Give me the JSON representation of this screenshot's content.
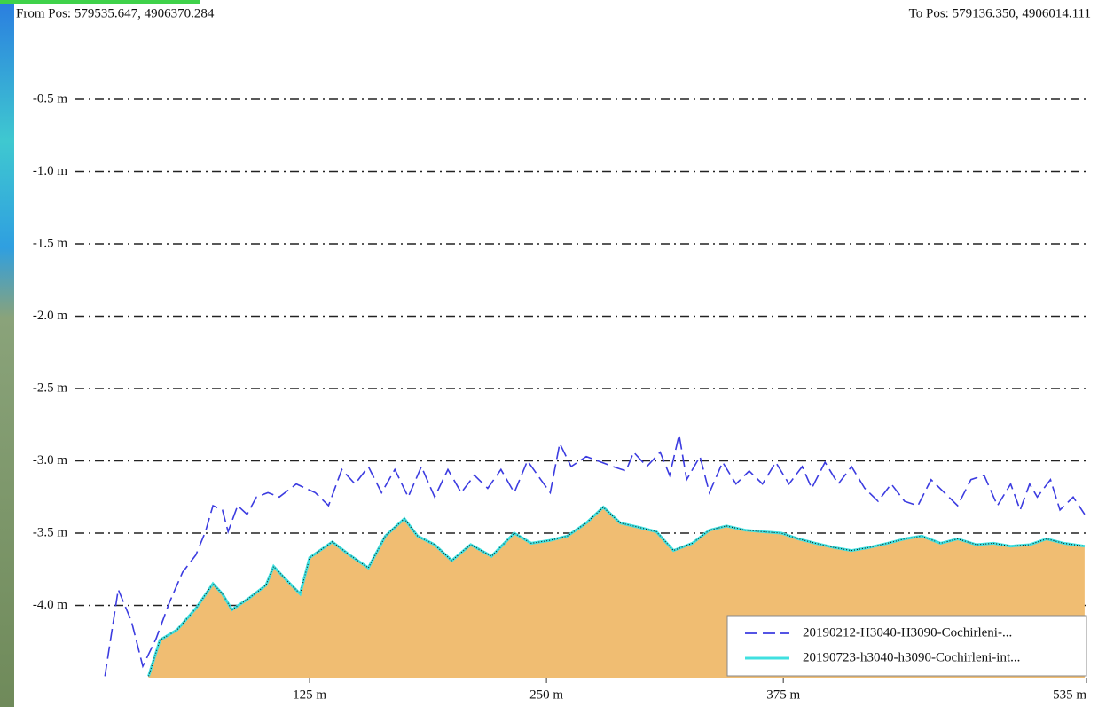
{
  "header": {
    "from": "From Pos: 579535.647, 4906370.284",
    "to": "To Pos: 579136.350, 4906014.111"
  },
  "chart_data": {
    "type": "line",
    "xlim": [
      0,
      535
    ],
    "xticks": [
      {
        "value": 125,
        "label": "125 m"
      },
      {
        "value": 250,
        "label": "250 m"
      },
      {
        "value": 375,
        "label": "375 m"
      },
      {
        "value": 535,
        "label": "535 m"
      }
    ],
    "ylim": [
      -4.5,
      0
    ],
    "yticks": [
      {
        "value": -0.5,
        "label": "-0.5 m"
      },
      {
        "value": -1.0,
        "label": "-1.0 m"
      },
      {
        "value": -1.5,
        "label": "-1.5 m"
      },
      {
        "value": -2.0,
        "label": "-2.0 m"
      },
      {
        "value": -2.5,
        "label": "-2.5 m"
      },
      {
        "value": -3.0,
        "label": "-3.0 m"
      },
      {
        "value": -3.5,
        "label": "-3.5 m"
      },
      {
        "value": -4.0,
        "label": "-4.0 m"
      }
    ],
    "grid": true,
    "legend": "lower right",
    "series": [
      {
        "name": "20190212-H3040-H3090-Cochirleni-...",
        "color": "#3c3ce0",
        "dashed": true,
        "x": [
          17,
          24,
          31,
          37,
          44,
          51,
          58,
          65,
          70,
          74,
          79,
          82,
          87,
          92,
          97,
          103,
          109,
          118,
          128,
          135,
          142,
          149,
          156,
          163,
          170,
          177,
          184,
          191,
          198,
          205,
          212,
          219,
          226,
          233,
          240,
          247,
          252,
          257,
          263,
          271,
          277,
          285,
          292,
          296,
          303,
          310,
          315,
          320,
          324,
          331,
          336,
          343,
          350,
          357,
          364,
          371,
          378,
          385,
          390,
          397,
          404,
          411,
          418,
          425,
          432,
          439,
          446,
          453,
          460,
          467,
          474,
          481,
          488,
          495,
          500,
          505,
          509,
          516,
          521,
          528,
          534
        ],
        "values": [
          -4.49,
          -3.89,
          -4.11,
          -4.42,
          -4.23,
          -3.98,
          -3.77,
          -3.65,
          -3.49,
          -3.31,
          -3.34,
          -3.49,
          -3.31,
          -3.37,
          -3.25,
          -3.22,
          -3.25,
          -3.16,
          -3.22,
          -3.31,
          -3.06,
          -3.16,
          -3.04,
          -3.22,
          -3.06,
          -3.25,
          -3.04,
          -3.25,
          -3.06,
          -3.22,
          -3.1,
          -3.19,
          -3.06,
          -3.22,
          -3.0,
          -3.13,
          -3.22,
          -2.88,
          -3.04,
          -2.97,
          -3.0,
          -3.04,
          -3.07,
          -2.94,
          -3.04,
          -2.94,
          -3.1,
          -2.82,
          -3.13,
          -2.97,
          -3.22,
          -3.01,
          -3.16,
          -3.07,
          -3.16,
          -3.01,
          -3.16,
          -3.04,
          -3.19,
          -3.01,
          -3.16,
          -3.04,
          -3.19,
          -3.28,
          -3.16,
          -3.28,
          -3.31,
          -3.13,
          -3.22,
          -3.31,
          -3.13,
          -3.1,
          -3.31,
          -3.16,
          -3.34,
          -3.16,
          -3.25,
          -3.13,
          -3.34,
          -3.25,
          -3.37
        ]
      },
      {
        "name": "20190723-h3040-h3090-Cochirleni-int...",
        "color": "#40e0e0",
        "fill": "#f0bd72",
        "x": [
          40,
          46,
          55,
          65,
          74,
          79,
          84,
          93,
          102,
          106,
          111,
          120,
          125,
          137,
          146,
          156,
          165,
          175,
          182,
          191,
          200,
          210,
          221,
          233,
          242,
          252,
          261,
          271,
          280,
          289,
          299,
          308,
          317,
          327,
          336,
          345,
          355,
          364,
          374,
          383,
          392,
          402,
          411,
          420,
          430,
          439,
          448,
          458,
          467,
          477,
          486,
          495,
          505,
          514,
          523,
          534
        ],
        "values": [
          -4.49,
          -4.24,
          -4.17,
          -4.02,
          -3.85,
          -3.92,
          -4.03,
          -3.95,
          -3.86,
          -3.73,
          -3.8,
          -3.92,
          -3.67,
          -3.56,
          -3.65,
          -3.74,
          -3.52,
          -3.4,
          -3.52,
          -3.58,
          -3.69,
          -3.58,
          -3.66,
          -3.5,
          -3.57,
          -3.55,
          -3.52,
          -3.43,
          -3.32,
          -3.43,
          -3.46,
          -3.49,
          -3.62,
          -3.57,
          -3.48,
          -3.45,
          -3.48,
          -3.49,
          -3.5,
          -3.54,
          -3.57,
          -3.6,
          -3.62,
          -3.6,
          -3.57,
          -3.54,
          -3.52,
          -3.57,
          -3.54,
          -3.58,
          -3.57,
          -3.59,
          -3.58,
          -3.54,
          -3.57,
          -3.59
        ]
      }
    ]
  }
}
